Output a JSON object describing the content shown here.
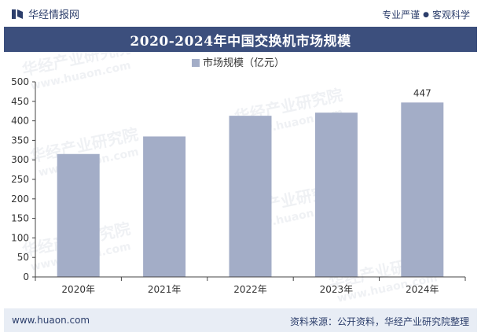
{
  "header": {
    "brand_name": "华经情报网",
    "brand_icon": "huajing-logo-icon",
    "tagline_left": "专业严谨",
    "tagline_sep": "●",
    "tagline_right": "客观科学"
  },
  "title": "2020-2024年中国交换机市场规模",
  "footer": {
    "site": "www.huaon.com",
    "source": "资料来源：公开资料，华经产业研究院整理"
  },
  "watermark": {
    "brand": "华经产业研究院",
    "url": "www.huaon.com"
  },
  "colors": {
    "header_bar": "#3c4f7d",
    "bar": "#a3adc7",
    "footer_bg": "#e8edf5",
    "text": "#2c3e6b"
  },
  "chart_data": {
    "type": "bar",
    "categories": [
      "2020年",
      "2021年",
      "2022年",
      "2023年",
      "2024年"
    ],
    "series": [
      {
        "name": "市场规模（亿元）",
        "values": [
          315,
          360,
          413,
          421,
          447
        ]
      }
    ],
    "data_labels": [
      null,
      null,
      null,
      null,
      "447"
    ],
    "ylim": [
      0,
      500
    ],
    "yticks": [
      0,
      50,
      100,
      150,
      200,
      250,
      300,
      350,
      400,
      450,
      500
    ],
    "grid": false,
    "legend_position": "top-center"
  }
}
